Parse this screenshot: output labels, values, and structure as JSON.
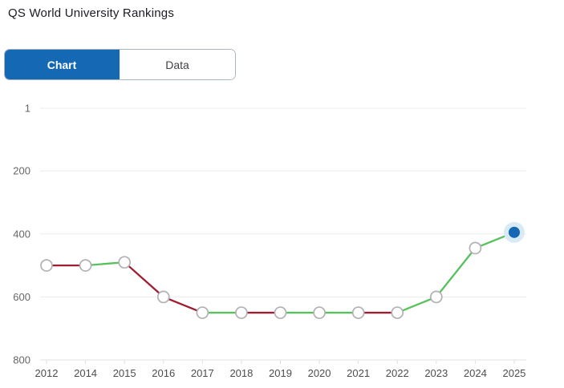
{
  "header": {
    "title": "QS World University Rankings"
  },
  "tabs": {
    "chart_label": "Chart",
    "data_label": "Data"
  },
  "chart_data": {
    "type": "line",
    "title": "QS World University Rankings",
    "x_labels": [
      "2012",
      "2014",
      "2015",
      "2016",
      "2017",
      "2018",
      "2019",
      "2020",
      "2021",
      "2022",
      "2023",
      "2024",
      "2025"
    ],
    "values": [
      500,
      500,
      490,
      600,
      650,
      650,
      650,
      650,
      650,
      650,
      600,
      445,
      395
    ],
    "segment_trend": [
      "decline",
      "improve",
      "decline",
      "decline",
      "improve",
      "decline",
      "improve",
      "improve",
      "decline",
      "improve",
      "improve",
      "improve"
    ],
    "y_ticks": [
      1,
      200,
      400,
      600,
      800
    ],
    "ylim": [
      1,
      800
    ],
    "y_inverted": true,
    "grid": true,
    "legend": "none",
    "current_point_year": "2025",
    "colors": {
      "improve": "#58c15e",
      "decline": "#9e1d30",
      "current_point": "#1568b3",
      "current_point_halo": "#d9eaf7",
      "marker_fill": "#ffffff",
      "marker_stroke": "#b1b1b6",
      "grid": "#ececec",
      "axis_line": "#e0e0e0",
      "y_tick_text": "#666666",
      "x_tick_text": "#4d4d4d",
      "tab_active_bg": "#1568b3",
      "title_text": "#1b1b24"
    }
  }
}
